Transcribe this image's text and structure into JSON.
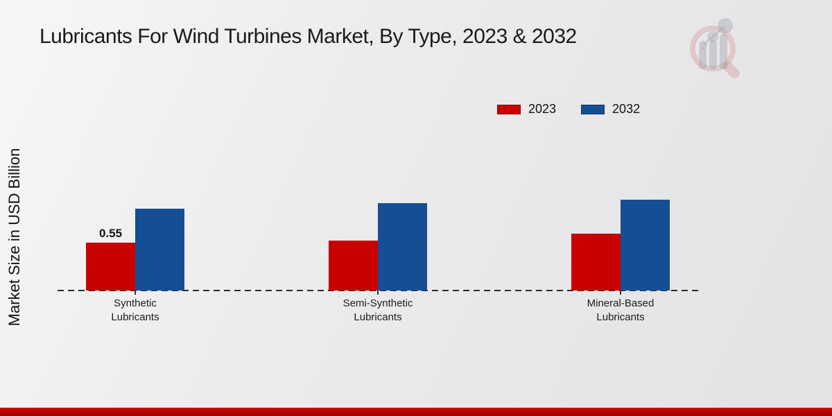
{
  "page": {
    "title": "Lubricants For Wind Turbines Market, By Type, 2023 & 2032",
    "ylabel": "Market Size in USD Billion"
  },
  "legend": {
    "items": [
      {
        "label": "2023",
        "color": "#c80101"
      },
      {
        "label": "2032",
        "color": "#164e94"
      }
    ]
  },
  "chart_data": {
    "type": "bar",
    "title": "Lubricants For Wind Turbines Market, By Type, 2023 & 2032",
    "xlabel": "",
    "ylabel": "Market Size in USD Billion",
    "categories": [
      "Synthetic Lubricants",
      "Semi-Synthetic Lubricants",
      "Mineral-Based Lubricants"
    ],
    "category_label_lines": [
      [
        "Synthetic",
        "Lubricants"
      ],
      [
        "Semi-Synthetic",
        "Lubricants"
      ],
      [
        "Mineral-Based",
        "Lubricants"
      ]
    ],
    "series": [
      {
        "name": "2023",
        "color": "#c80101",
        "values": [
          0.55,
          0.57,
          0.65
        ],
        "data_labels": [
          "0.55",
          "",
          ""
        ]
      },
      {
        "name": "2032",
        "color": "#164e94",
        "values": [
          0.94,
          1.0,
          1.04
        ],
        "data_labels": [
          "",
          "",
          ""
        ]
      }
    ],
    "ylim": [
      0,
      1.2
    ],
    "y_axis_ticks_visible": false,
    "grid": false,
    "baseline_style": "dashed",
    "legend_position": "top-right"
  },
  "watermark": {
    "icon": "magnifier-bar-chart-logo"
  },
  "footer": {
    "band_color": "#b40404"
  }
}
